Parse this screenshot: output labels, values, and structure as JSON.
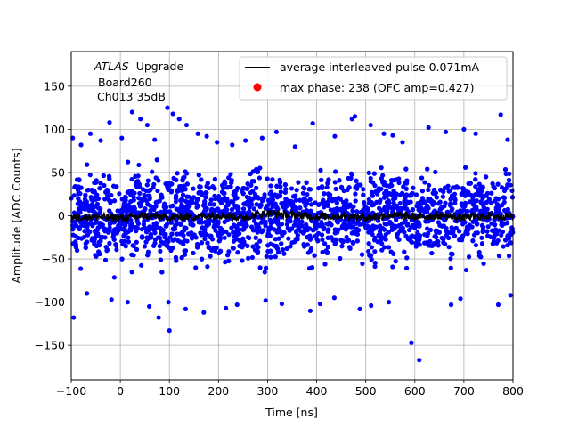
{
  "chart_data": {
    "type": "scatter",
    "xlabel": "Time [ns]",
    "ylabel": "Amplitude [ADC Counts]",
    "xlim": [
      -100,
      800
    ],
    "ylim": [
      -190,
      190
    ],
    "xticks": [
      -100,
      0,
      100,
      200,
      300,
      400,
      500,
      600,
      700,
      800
    ],
    "yticks": [
      -150,
      -100,
      -50,
      0,
      50,
      100,
      150
    ],
    "grid": true,
    "legend_position": "top-right",
    "annotation": {
      "atlas": "ATLAS",
      "upgrade": "Upgrade",
      "board": "Board260",
      "channel": "Ch013 35dB"
    },
    "series": [
      {
        "name": "average interleaved pulse 0.071mA",
        "kind": "line",
        "color": "#000000",
        "x": [
          -100,
          -50,
          0,
          50,
          100,
          150,
          200,
          250,
          300,
          350,
          400,
          450,
          500,
          550,
          600,
          650,
          700,
          750,
          800
        ],
        "y": [
          -2,
          -1,
          -3,
          0,
          -2,
          -1,
          1,
          -2,
          3,
          1,
          -1,
          0,
          -2,
          1,
          -1,
          0,
          -2,
          0,
          -1
        ]
      },
      {
        "name": "max phase: 238 (OFC amp=0.427)",
        "kind": "marker",
        "color": "#ff0000",
        "x": [],
        "y": []
      },
      {
        "name": "",
        "kind": "scatter",
        "color": "#0000ff",
        "x": [
          -97,
          -80,
          -61,
          -40,
          -22,
          3,
          24,
          41,
          55,
          70,
          96,
          107,
          120,
          135,
          158,
          176,
          197,
          228,
          255,
          289,
          318,
          356,
          392,
          437,
          472,
          478,
          510,
          537,
          555,
          575,
          628,
          663,
          700,
          724,
          775,
          789,
          -95,
          -68,
          -18,
          15,
          59,
          78,
          98,
          100,
          133,
          170,
          215,
          238,
          296,
          329,
          387,
          407,
          436,
          488,
          511,
          547,
          593,
          609,
          674,
          693,
          770,
          795
        ],
        "y": [
          90,
          82,
          95,
          87,
          108,
          90,
          120,
          112,
          105,
          88,
          125,
          118,
          112,
          105,
          95,
          92,
          85,
          82,
          87,
          90,
          97,
          80,
          107,
          92,
          112,
          115,
          105,
          95,
          93,
          85,
          102,
          97,
          100,
          95,
          117,
          88,
          -118,
          -90,
          -97,
          -100,
          -105,
          -118,
          -100,
          -133,
          -108,
          -112,
          -107,
          -103,
          -98,
          -102,
          -110,
          -102,
          -95,
          -108,
          -104,
          -100,
          -147,
          -167,
          -103,
          -96,
          -103,
          -92
        ]
      }
    ]
  }
}
